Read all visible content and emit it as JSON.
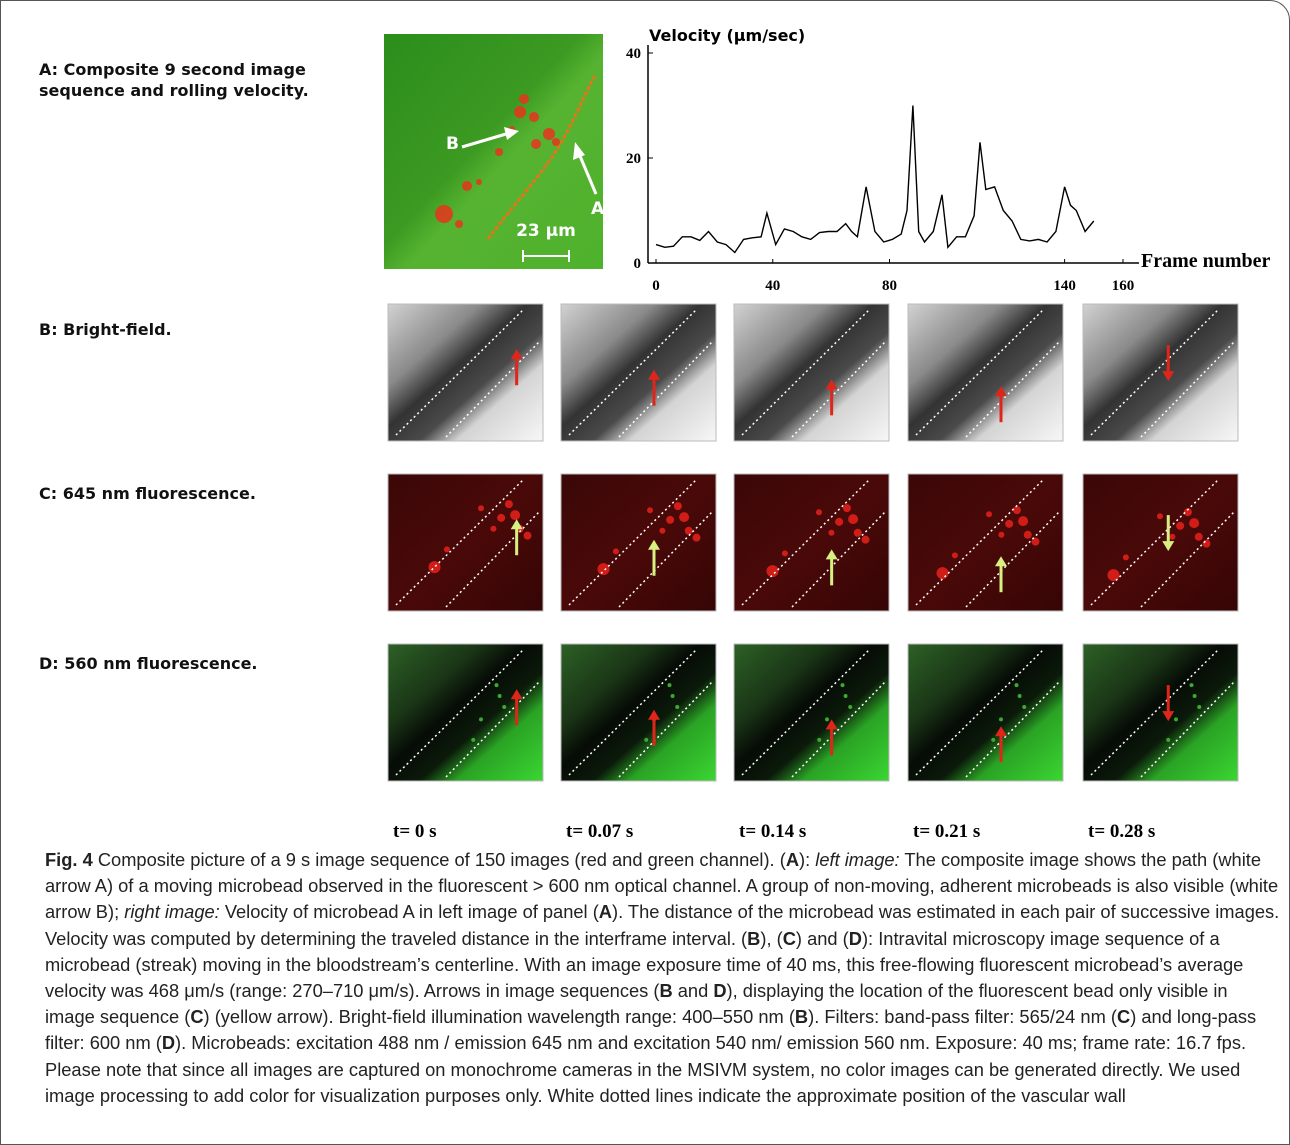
{
  "figure": {
    "rows": [
      "A: Composite 9 second image sequence and rolling velocity.",
      "B: Bright-field.",
      "C: 645 nm fluorescence.",
      "D: 560 nm fluorescence."
    ],
    "image_labels": {
      "bead_group": "B",
      "bead_path": "A",
      "scale": "23 μm"
    },
    "times": [
      "t= 0 s",
      "t= 0.07 s",
      "t= 0.14 s",
      "t= 0.21 s",
      "t= 0.28 s"
    ]
  },
  "chart_data": {
    "type": "line",
    "y_label": "Velocity (μm/sec)",
    "x_label": "Frame number",
    "x": [
      0,
      3,
      6,
      9,
      12,
      15,
      18,
      21,
      24,
      27,
      30,
      33,
      36,
      38,
      41,
      44,
      47,
      50,
      53,
      56,
      59,
      62,
      65,
      67,
      69,
      72,
      75,
      78,
      81,
      84,
      86,
      88,
      90,
      92,
      95,
      98,
      100,
      103,
      106,
      109,
      111,
      113,
      116,
      119,
      122,
      125,
      128,
      131,
      134,
      137,
      140,
      142,
      144,
      147,
      150
    ],
    "values": [
      3.5,
      3,
      3.2,
      5,
      5,
      4.3,
      6,
      4,
      3.5,
      2,
      4.5,
      4.8,
      5,
      9.5,
      3.5,
      6.5,
      6,
      5,
      4.5,
      5.8,
      6,
      6,
      7.5,
      6,
      5,
      14.5,
      6,
      4,
      4.5,
      5.5,
      10,
      30,
      6,
      4,
      6,
      13,
      3,
      5,
      5,
      9,
      23,
      14,
      14.5,
      10,
      8,
      4.5,
      4.2,
      4.5,
      4,
      6,
      14.5,
      11,
      10,
      6,
      8
    ],
    "color": "#000000",
    "xlim": [
      0,
      160
    ],
    "ylim": [
      0,
      40
    ],
    "xticks": [
      0,
      40,
      80,
      140,
      160
    ],
    "yticks": [
      0,
      20,
      40
    ]
  },
  "caption": [
    {
      "text": "Fig. 4",
      "bold": true
    },
    {
      "text": " Composite picture of a 9 s image sequence of 150 images (red and green channel). ("
    },
    {
      "text": "A",
      "bold": true
    },
    {
      "text": "): "
    },
    {
      "text": "left image:",
      "italic": true
    },
    {
      "text": " The composite image shows the path (white arrow A) of a moving microbead observed in the fluorescent > 600 nm optical channel. A group of non-moving, adherent microbeads is also visible (white arrow B); "
    },
    {
      "text": "right image:",
      "italic": true
    },
    {
      "text": " Velocity of microbead A in left image of panel ("
    },
    {
      "text": "A",
      "bold": true
    },
    {
      "text": "). The distance of the microbead was estimated in each pair of successive images. Velocity was computed by determining the traveled distance in the interframe interval. ("
    },
    {
      "text": "B",
      "bold": true
    },
    {
      "text": "), ("
    },
    {
      "text": "C",
      "bold": true
    },
    {
      "text": ") and ("
    },
    {
      "text": "D",
      "bold": true
    },
    {
      "text": "): Intravital microscopy image sequence of a microbead (streak) moving in the bloodstream’s centerline. With an image exposure time of 40 ms, this free-flowing fluorescent microbead’s average velocity was 468 μm/s (range: 270–710 μm/s). Arrows in image sequences ("
    },
    {
      "text": "B",
      "bold": true
    },
    {
      "text": " and "
    },
    {
      "text": "D",
      "bold": true
    },
    {
      "text": "), displaying the location of the fluorescent bead only visible in image sequence ("
    },
    {
      "text": "C",
      "bold": true
    },
    {
      "text": ") (yellow arrow). Bright-field illumination wavelength range: 400–550 nm ("
    },
    {
      "text": "B",
      "bold": true
    },
    {
      "text": "). Filters: band-pass filter: 565/24 nm ("
    },
    {
      "text": "C",
      "bold": true
    },
    {
      "text": ") and long-pass filter: 600 nm ("
    },
    {
      "text": "D",
      "bold": true
    },
    {
      "text": "). Microbeads: excitation 488 nm / emission 645 nm and excitation 540 nm/ emission 560 nm. Exposure: 40 ms; frame rate: 16.7 fps. Please note that since all images are captured on monochrome cameras in the MSIVM system, no color images can be generated directly. We used image processing to add color for visualization purposes only. White dotted lines indicate the approximate position of the vascular wall"
    }
  ]
}
